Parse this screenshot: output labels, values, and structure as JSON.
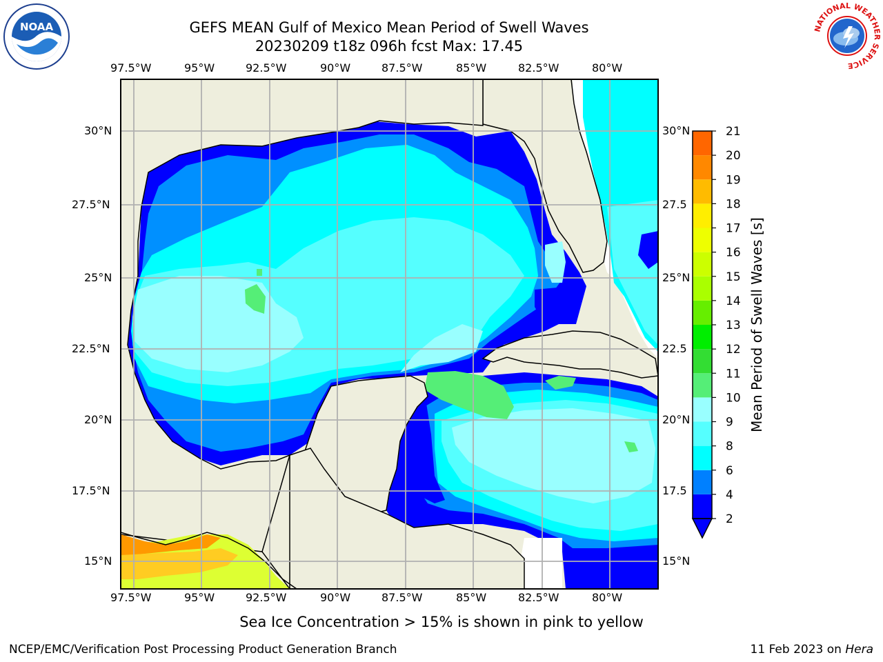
{
  "title": {
    "line1": "GEFS MEAN Gulf of Mexico Mean Period of Swell Waves",
    "line2": "20230209 t18z 096h fcst   Max: 17.45"
  },
  "map": {
    "lon_labels_top": [
      "97.5°W",
      "95°W",
      "92.5°W",
      "90°W",
      "87.5°W",
      "85°W",
      "82.5°W",
      "80°W"
    ],
    "lon_labels_bottom": [
      "97.5°W",
      "95°W",
      "92.5°W",
      "90°W",
      "87.5°W",
      "85°W",
      "82.5°W",
      "80°W"
    ],
    "lat_labels_left": [
      "30°N",
      "27.5°N",
      "25°N",
      "22.5°N",
      "20°N",
      "17.5°N",
      "15°N"
    ],
    "lat_labels_right": [
      "30°N",
      "27.5",
      "25°N",
      "22.5",
      "20°N",
      "17.5",
      "15°N"
    ],
    "colors": {
      "land": "#eeeedd",
      "ocean_low": "#0000ff",
      "ocean_mid": "#0090ff",
      "ocean_cyan": "#00ffff",
      "ocean_light": "#55ffff",
      "ocean_pale": "#99ffff",
      "green": "#55ee77"
    }
  },
  "colorbar": {
    "label": "Mean Period of Swell Waves [s]",
    "ticks": [
      "2",
      "4",
      "6",
      "8",
      "9",
      "10",
      "11",
      "12",
      "13",
      "14",
      "15",
      "16",
      "17",
      "18",
      "19",
      "20",
      "21"
    ],
    "bin_colors": [
      "#0000ff",
      "#0080ff",
      "#00ffff",
      "#55ffff",
      "#99ffff",
      "#55ee77",
      "#33dd33",
      "#00ee00",
      "#66ee00",
      "#aaff00",
      "#ccff00",
      "#eeff00",
      "#ffee00",
      "#ffbb00",
      "#ff8800",
      "#ff6600",
      "#ff3300",
      "#ff0000"
    ]
  },
  "caption": "Sea Ice Concentration > 15% is shown in pink to yellow",
  "footer": {
    "left": "NCEP/EMC/Verification Post Processing Product Generation Branch",
    "right_prefix": "11 Feb 2023 on ",
    "right_host": "Hera"
  },
  "logos": {
    "noaa_text": "NOAA",
    "nws_ring": "NATIONAL WEATHER SERVICE"
  }
}
